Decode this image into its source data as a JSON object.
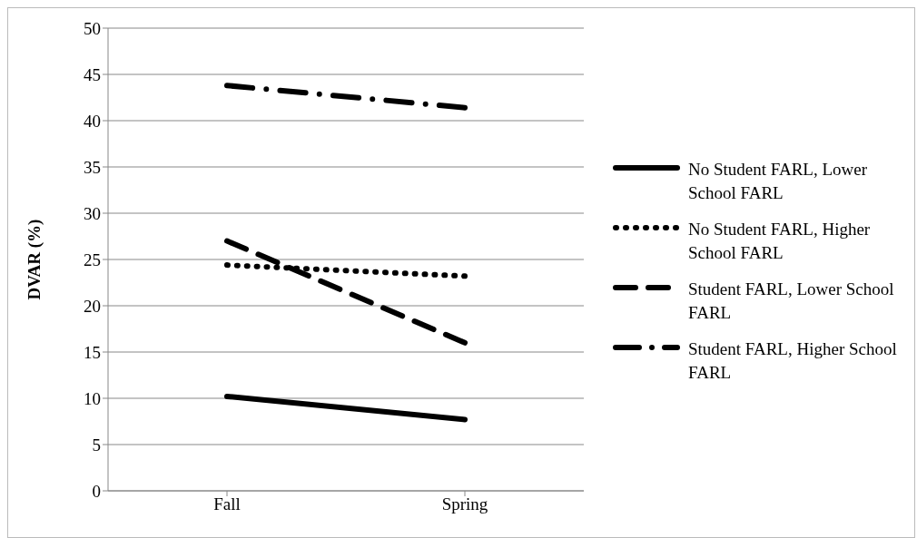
{
  "chart_data": {
    "type": "line",
    "ylabel": "DVAR (%)",
    "categories": [
      "Fall",
      "Spring"
    ],
    "series": [
      {
        "name": "No Student FARL, Lower School FARL",
        "color": "#000000",
        "line_style": "solid",
        "values": [
          10.2,
          7.7
        ]
      },
      {
        "name": "No Student FARL, Higher School FARL",
        "color": "#000000",
        "line_style": "dotted",
        "values": [
          24.4,
          23.2
        ]
      },
      {
        "name": "Student FARL, Lower School FARL",
        "color": "#000000",
        "line_style": "dashed",
        "values": [
          27.0,
          16.0
        ]
      },
      {
        "name": "Student FARL, Higher School FARL",
        "color": "#000000",
        "line_style": "dashed",
        "values": [
          43.8,
          41.4
        ]
      }
    ],
    "ylim": [
      0,
      50
    ],
    "yticks": [
      0,
      5,
      10,
      15,
      20,
      25,
      30,
      35,
      40,
      45,
      50
    ],
    "grid": "y",
    "legend": "right",
    "marker": "none"
  }
}
